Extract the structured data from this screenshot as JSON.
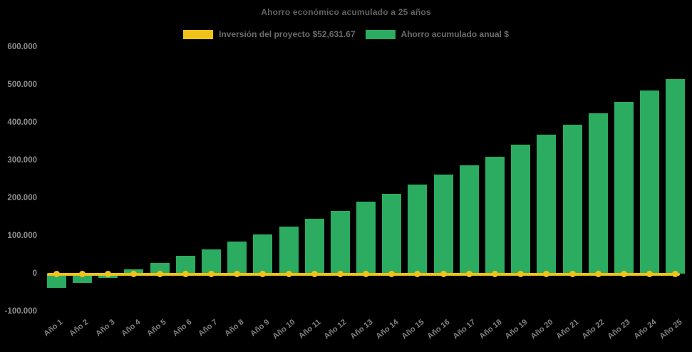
{
  "chart_data": {
    "type": "bar",
    "title": "Ahorro económico acumulado a 25 años",
    "legend_position": "top",
    "grid": false,
    "background": "#000000",
    "xlabel": "",
    "ylabel": "",
    "ylim": [
      -100000,
      600000
    ],
    "categories": [
      "Año 1",
      "Año 2",
      "Año 3",
      "Año 4",
      "Año 5",
      "Año 6",
      "Año 7",
      "Año 8",
      "Año 9",
      "Año 10",
      "Año 11",
      "Año 12",
      "Año 13",
      "Año 14",
      "Año 15",
      "Año 16",
      "Año 17",
      "Año 18",
      "Año 19",
      "Año 20",
      "Año 21",
      "Año 22",
      "Año 23",
      "Año 24",
      "Año 25"
    ],
    "y_axis": {
      "ticks": [
        {
          "value": 600000,
          "label": "600.000"
        },
        {
          "value": 500000,
          "label": "500.000"
        },
        {
          "value": 400000,
          "label": "400.000"
        },
        {
          "value": 300000,
          "label": "300.000"
        },
        {
          "value": 200000,
          "label": "200.000"
        },
        {
          "value": 100000,
          "label": "100.000"
        },
        {
          "value": 0,
          "label": "0"
        },
        {
          "value": -100000,
          "label": "-100.000"
        }
      ]
    },
    "series": [
      {
        "name": "Inversión del proyecto $52,631.67",
        "type": "line",
        "marker": "circle",
        "color": "#EFC31A",
        "values": [
          0,
          0,
          0,
          0,
          0,
          0,
          0,
          0,
          0,
          0,
          0,
          0,
          0,
          0,
          0,
          0,
          0,
          0,
          0,
          0,
          0,
          0,
          0,
          0,
          0
        ]
      },
      {
        "name": "Ahorro acumulado anual $",
        "type": "bar",
        "color": "#2BAC61",
        "values": [
          -37000,
          -25000,
          -11000,
          11000,
          29000,
          47000,
          65000,
          84000,
          103000,
          125000,
          146000,
          166000,
          190000,
          212000,
          235000,
          263000,
          286000,
          310000,
          341000,
          367000,
          395000,
          424000,
          454000,
          484000,
          516000
        ]
      }
    ]
  },
  "colors": {
    "background": "#000000",
    "bar_green": "#2BAC61",
    "line_yellow": "#EFC31A",
    "title_text": "#616161",
    "legend_text": "#6B6B6B",
    "axis_text": "#8F8F8F"
  }
}
